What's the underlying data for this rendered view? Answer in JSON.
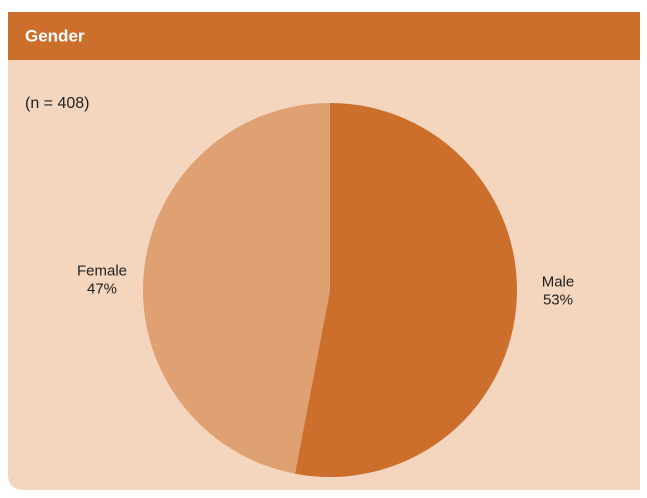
{
  "chart_data": {
    "type": "pie",
    "title": "Gender",
    "subtitle": "(n = 408)",
    "categories": [
      "Male",
      "Female"
    ],
    "values": [
      53,
      47
    ],
    "value_labels": [
      "53%",
      "47%"
    ],
    "colors": [
      "#cc6f2d",
      "#dfa072"
    ]
  }
}
